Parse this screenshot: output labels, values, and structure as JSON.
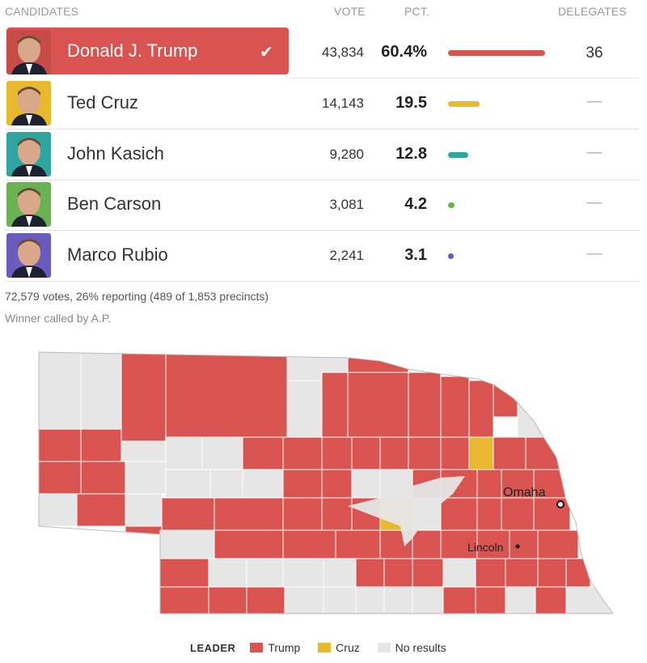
{
  "header": {
    "candidates": "CANDIDATES",
    "vote": "VOTE",
    "pct": "PCT.",
    "delegates": "DELEGATES"
  },
  "candidates": [
    {
      "name": "Donald J. Trump",
      "votes": "43,834",
      "pct": "60.4%",
      "pct_value": 60.4,
      "delegates": "36",
      "color": "#d95451",
      "winner": true,
      "photo_bg": "#c74b47"
    },
    {
      "name": "Ted Cruz",
      "votes": "14,143",
      "pct": "19.5",
      "pct_value": 19.5,
      "delegates": "—",
      "color": "#e8b82e",
      "winner": false,
      "photo_bg": "#e8b82e"
    },
    {
      "name": "John Kasich",
      "votes": "9,280",
      "pct": "12.8",
      "pct_value": 12.8,
      "delegates": "—",
      "color": "#2ea5a1",
      "winner": false,
      "photo_bg": "#2ea5a1"
    },
    {
      "name": "Ben Carson",
      "votes": "3,081",
      "pct": "4.2",
      "pct_value": 4.2,
      "delegates": "—",
      "color": "#6bb253",
      "winner": false,
      "photo_bg": "#6bb253"
    },
    {
      "name": "Marco Rubio",
      "votes": "2,241",
      "pct": "3.1",
      "pct_value": 3.1,
      "delegates": "—",
      "color": "#6a5bbf",
      "winner": false,
      "photo_bg": "#6a5bbf"
    }
  ],
  "summary": {
    "votes_line": "72,579 votes, 26% reporting (489 of 1,853 precincts)",
    "called_line": "Winner called by A.P."
  },
  "map": {
    "cities": [
      {
        "name": "Omaha"
      },
      {
        "name": "Lincoln"
      }
    ],
    "colors": {
      "trump": "#d95451",
      "cruz": "#e8b82e",
      "none": "#e6e6e6"
    }
  },
  "legend": {
    "title": "LEADER",
    "items": [
      {
        "label": "Trump",
        "color": "#d95451"
      },
      {
        "label": "Cruz",
        "color": "#e8b82e"
      },
      {
        "label": "No results",
        "color": "#e6e6e6"
      }
    ]
  }
}
